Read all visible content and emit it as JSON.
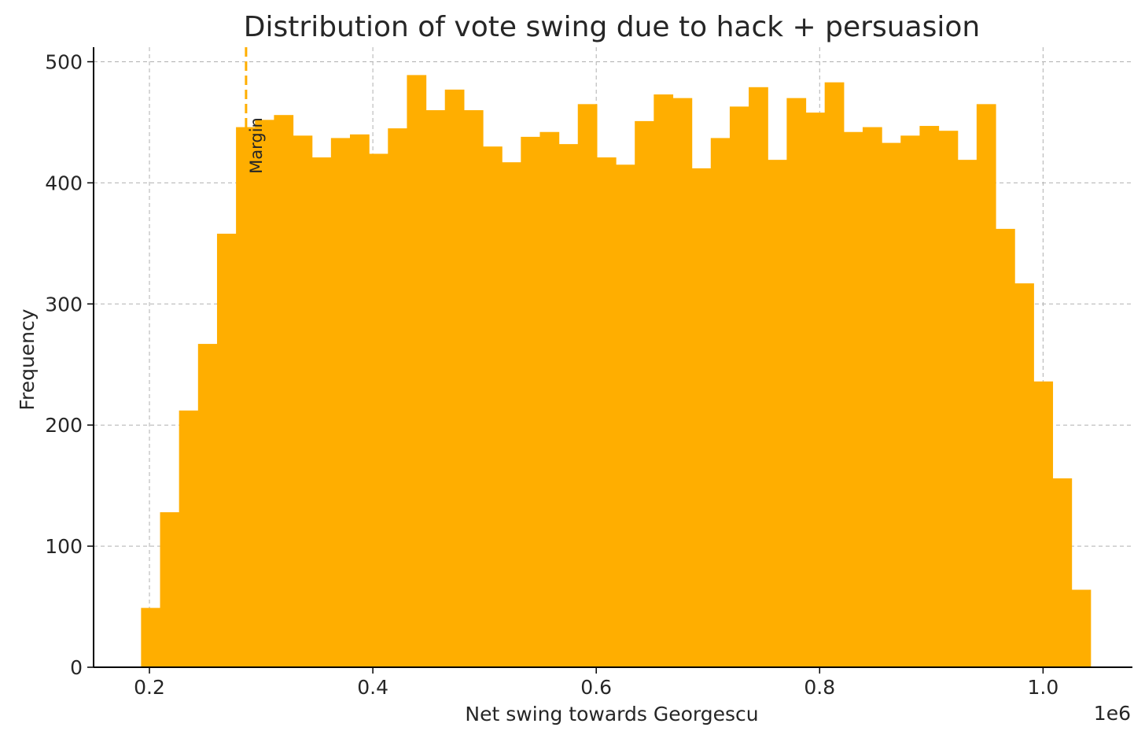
{
  "chart_data": {
    "type": "bar",
    "title": "Distribution of vote swing due to hack + persuasion",
    "xlabel": "Net swing towards Georgescu",
    "ylabel": "Frequency",
    "x_offset_label": "1e6",
    "xlim": [
      0.15,
      1.08
    ],
    "ylim": [
      0,
      512
    ],
    "x_ticks": [
      {
        "value": 0.2,
        "label": "0.2"
      },
      {
        "value": 0.4,
        "label": "0.4"
      },
      {
        "value": 0.6,
        "label": "0.6"
      },
      {
        "value": 0.8,
        "label": "0.8"
      },
      {
        "value": 1.0,
        "label": "1.0"
      }
    ],
    "y_ticks": [
      {
        "value": 0,
        "label": "0"
      },
      {
        "value": 100,
        "label": "100"
      },
      {
        "value": 200,
        "label": "200"
      },
      {
        "value": 300,
        "label": "300"
      },
      {
        "value": 400,
        "label": "400"
      },
      {
        "value": 500,
        "label": "500"
      }
    ],
    "grid": true,
    "bar_color": "#FFAE00",
    "bin_start": 0.1925,
    "bin_width": 0.017,
    "values": [
      49,
      128,
      212,
      267,
      358,
      446,
      452,
      456,
      439,
      421,
      437,
      440,
      424,
      445,
      489,
      460,
      477,
      460,
      430,
      417,
      438,
      442,
      432,
      465,
      421,
      415,
      451,
      473,
      470,
      412,
      437,
      463,
      479,
      419,
      470,
      458,
      483,
      442,
      446,
      433,
      439,
      447,
      443,
      419,
      465,
      362,
      317,
      236,
      156,
      64
    ],
    "reference_line": {
      "x": 0.2865,
      "label": "Margin",
      "color": "#FFAE00"
    }
  }
}
